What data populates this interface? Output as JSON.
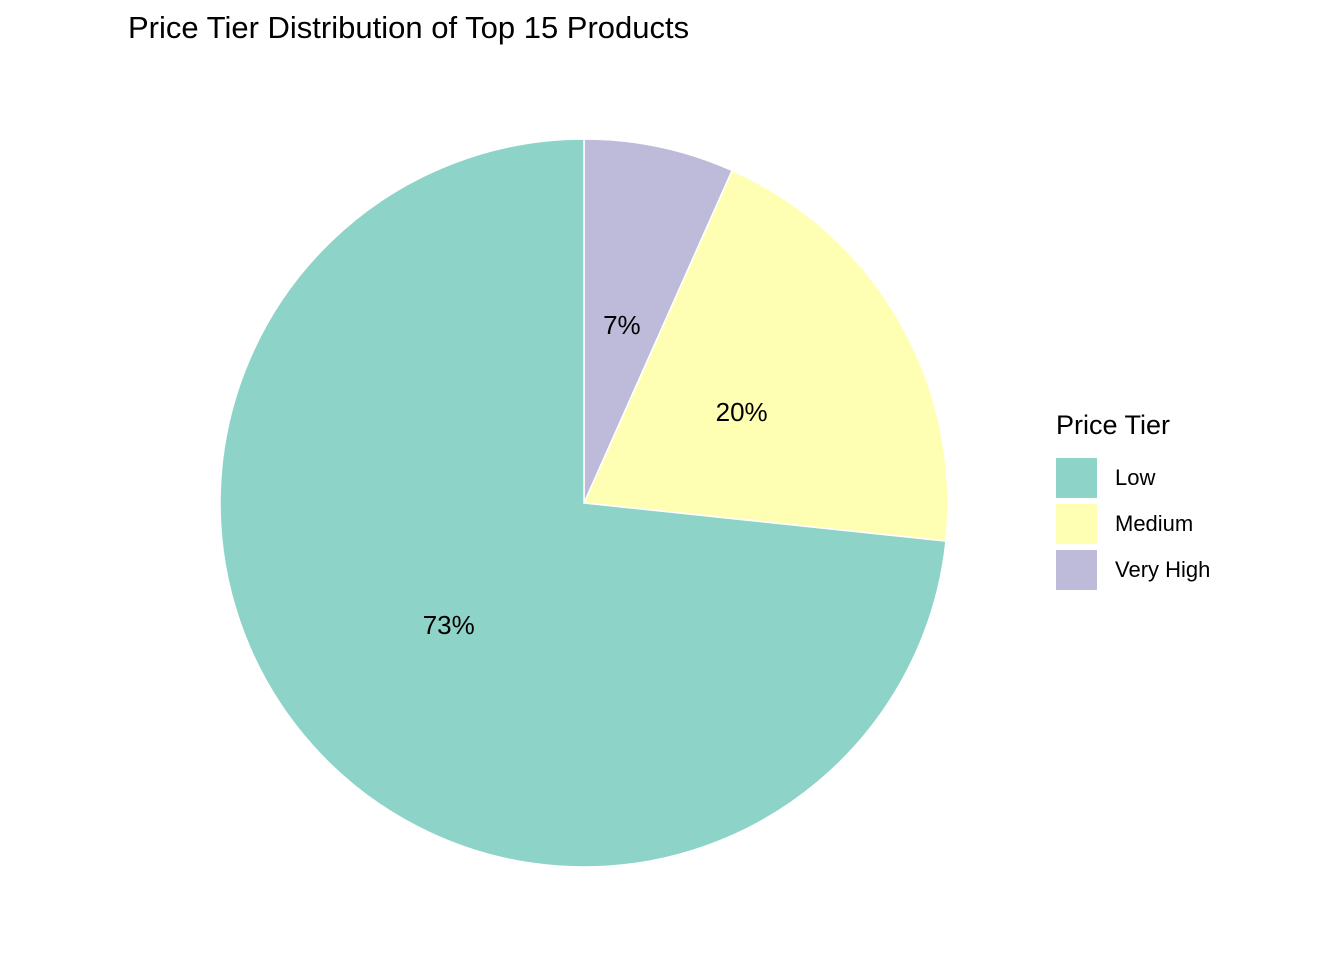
{
  "chart_data": {
    "type": "pie",
    "title": "Price Tier Distribution of Top 15 Products",
    "legend": {
      "title": "Price Tier",
      "placement": "right"
    },
    "slices": [
      {
        "name": "Very High",
        "value": 6.67,
        "label": "7%",
        "color": "#BEBADA"
      },
      {
        "name": "Medium",
        "value": 20,
        "label": "20%",
        "color": "#FFFFB3"
      },
      {
        "name": "Low",
        "value": 73.33,
        "label": "73%",
        "color": "#8DD3C7"
      }
    ],
    "legend_entries": [
      {
        "name": "Low",
        "color": "#8DD3C7"
      },
      {
        "name": "Medium",
        "color": "#FFFFB3"
      },
      {
        "name": "Very High",
        "color": "#BEBADA"
      }
    ]
  }
}
